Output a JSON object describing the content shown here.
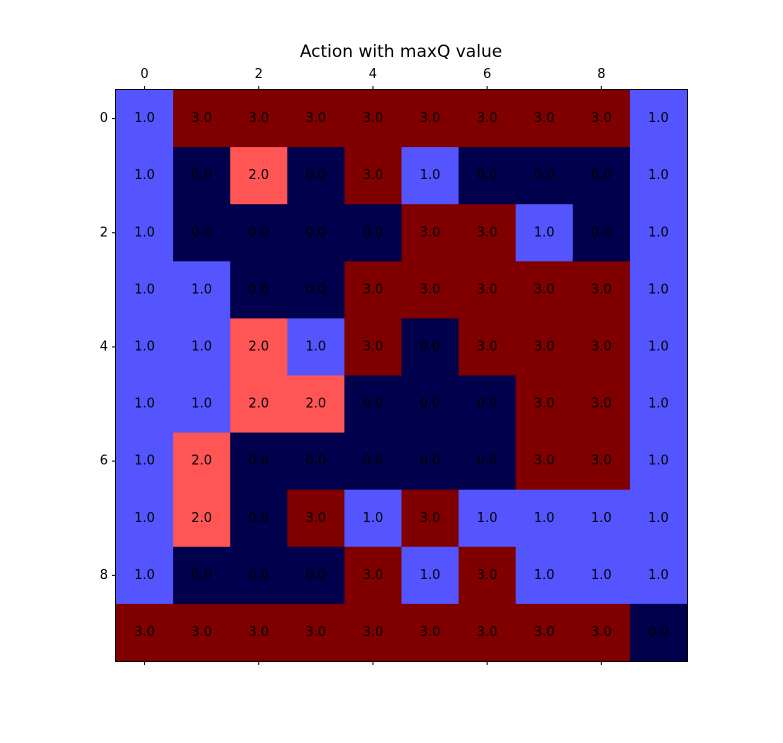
{
  "chart_data": {
    "type": "heatmap",
    "title": "Action with maxQ value",
    "xticks": [
      0,
      2,
      4,
      6,
      8
    ],
    "yticks": [
      0,
      2,
      4,
      6,
      8
    ],
    "xtick_position": "top",
    "grid": false,
    "colorscale": {
      "0": "#00004c",
      "1": "#5555ff",
      "2": "#ff5555",
      "3": "#800000"
    },
    "values": [
      [
        1.0,
        3.0,
        3.0,
        3.0,
        3.0,
        3.0,
        3.0,
        3.0,
        3.0,
        1.0
      ],
      [
        1.0,
        0.0,
        2.0,
        0.0,
        3.0,
        1.0,
        0.0,
        0.0,
        0.0,
        1.0
      ],
      [
        1.0,
        0.0,
        0.0,
        0.0,
        0.0,
        3.0,
        3.0,
        1.0,
        0.0,
        1.0
      ],
      [
        1.0,
        1.0,
        0.0,
        0.0,
        3.0,
        3.0,
        3.0,
        3.0,
        3.0,
        1.0
      ],
      [
        1.0,
        1.0,
        2.0,
        1.0,
        3.0,
        0.0,
        3.0,
        3.0,
        3.0,
        1.0
      ],
      [
        1.0,
        1.0,
        2.0,
        2.0,
        0.0,
        0.0,
        0.0,
        3.0,
        3.0,
        1.0
      ],
      [
        1.0,
        2.0,
        0.0,
        0.0,
        0.0,
        0.0,
        0.0,
        3.0,
        3.0,
        1.0
      ],
      [
        1.0,
        2.0,
        0.0,
        3.0,
        1.0,
        3.0,
        1.0,
        1.0,
        1.0,
        1.0
      ],
      [
        1.0,
        0.0,
        0.0,
        0.0,
        3.0,
        1.0,
        3.0,
        1.0,
        1.0,
        1.0
      ],
      [
        3.0,
        3.0,
        3.0,
        3.0,
        3.0,
        3.0,
        3.0,
        3.0,
        3.0,
        0.0
      ]
    ]
  }
}
